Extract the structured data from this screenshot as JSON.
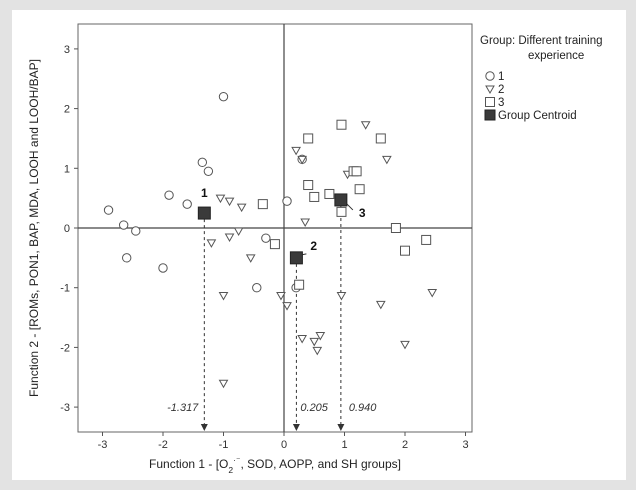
{
  "chart_data": {
    "type": "scatter",
    "xlabel": "Function 1 - [O2·⁻, SOD, AOPP, and SH groups]",
    "ylabel": "Function 2 - [ROMs, PON1, BAP, MDA, LOOH and LOOH/BAP]",
    "xlim": [
      -3.3,
      3.3
    ],
    "ylim": [
      -3.3,
      3.3
    ],
    "x_ticks": [
      -3,
      -2,
      -1,
      0,
      1,
      2,
      3
    ],
    "y_ticks": [
      -3,
      -2,
      -1,
      0,
      1,
      2,
      3
    ],
    "x_tick_labels": [
      "-3",
      "-2",
      "-1",
      "0",
      "1",
      "2",
      "3"
    ],
    "y_tick_labels": [
      "-3",
      "-2",
      "-1",
      "0",
      "1",
      "2",
      "3"
    ],
    "grid": false,
    "legend": {
      "title": "Group: Different training experience",
      "title_line1": "Group: Different training",
      "title_line2": "experience",
      "placement": "right"
    },
    "series": [
      {
        "name": "1",
        "marker": "circle",
        "points": [
          [
            -2.9,
            0.3
          ],
          [
            -2.65,
            0.05
          ],
          [
            -2.45,
            -0.05
          ],
          [
            -2.6,
            -0.5
          ],
          [
            -2.0,
            -0.67
          ],
          [
            -1.9,
            0.55
          ],
          [
            -1.6,
            0.4
          ],
          [
            -1.35,
            1.1
          ],
          [
            -1.25,
            0.95
          ],
          [
            -1.0,
            2.2
          ],
          [
            -0.45,
            -1.0
          ],
          [
            -0.3,
            -0.17
          ],
          [
            0.05,
            0.45
          ],
          [
            0.3,
            1.15
          ],
          [
            0.2,
            -1.0
          ]
        ]
      },
      {
        "name": "2",
        "marker": "triangle-down",
        "points": [
          [
            -1.2,
            -0.25
          ],
          [
            -1.05,
            0.5
          ],
          [
            -0.9,
            0.45
          ],
          [
            -0.7,
            0.35
          ],
          [
            -0.9,
            -0.15
          ],
          [
            -0.75,
            -0.05
          ],
          [
            -0.55,
            -0.5
          ],
          [
            -1.0,
            -1.13
          ],
          [
            -1.0,
            -2.6
          ],
          [
            -0.05,
            -1.13
          ],
          [
            0.05,
            -1.3
          ],
          [
            0.2,
            1.3
          ],
          [
            0.3,
            1.15
          ],
          [
            0.35,
            0.1
          ],
          [
            0.3,
            -1.85
          ],
          [
            0.5,
            -1.9
          ],
          [
            0.55,
            -2.05
          ],
          [
            0.6,
            -1.8
          ],
          [
            0.95,
            -1.13
          ],
          [
            1.05,
            0.9
          ],
          [
            1.35,
            1.73
          ],
          [
            1.6,
            -1.28
          ],
          [
            1.7,
            1.15
          ],
          [
            2.0,
            -1.95
          ],
          [
            2.45,
            -1.08
          ]
        ]
      },
      {
        "name": "3",
        "marker": "square",
        "points": [
          [
            -0.35,
            0.4
          ],
          [
            -0.15,
            -0.27
          ],
          [
            0.25,
            -0.95
          ],
          [
            0.4,
            1.5
          ],
          [
            0.4,
            0.72
          ],
          [
            0.5,
            0.52
          ],
          [
            0.75,
            0.57
          ],
          [
            0.95,
            1.73
          ],
          [
            0.95,
            0.27
          ],
          [
            1.15,
            0.95
          ],
          [
            1.2,
            0.95
          ],
          [
            1.25,
            0.65
          ],
          [
            1.6,
            1.5
          ],
          [
            1.85,
            0.0
          ],
          [
            2.0,
            -0.38
          ],
          [
            2.35,
            -0.2
          ]
        ]
      }
    ],
    "centroids": {
      "name": "Group Centroid",
      "marker": "filled-square",
      "points": [
        {
          "group": "1",
          "x": -1.317,
          "y": 0.25
        },
        {
          "group": "2",
          "x": 0.205,
          "y": -0.5
        },
        {
          "group": "3",
          "x": 0.94,
          "y": 0.47
        }
      ]
    },
    "projection_labels": [
      "-1.317",
      "0.205",
      "0.940"
    ]
  },
  "colors": {
    "background": "#e3e3e3",
    "plot_background": "#ffffff",
    "marker_stroke": "#555555",
    "centroid_fill": "#3a3a3a",
    "axis_line": "#444444"
  }
}
